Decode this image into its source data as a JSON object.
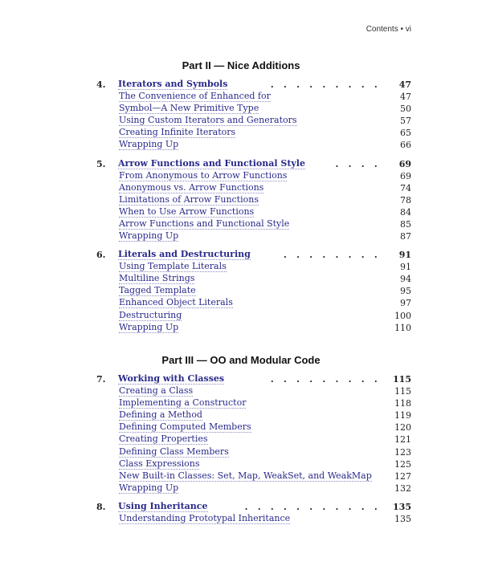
{
  "header": {
    "text": "Contents • vi"
  },
  "parts": [
    {
      "title": "Part II — Nice Additions",
      "chapters": [
        {
          "number": "4.",
          "title": "Iterators and Symbols",
          "page": "47",
          "sections": [
            {
              "title": "The Convenience of Enhanced for",
              "page": "47"
            },
            {
              "title": "Symbol—A New Primitive Type",
              "page": "50"
            },
            {
              "title": "Using Custom Iterators and Generators",
              "page": "57"
            },
            {
              "title": "Creating Infinite Iterators",
              "page": "65"
            },
            {
              "title": "Wrapping Up",
              "page": "66"
            }
          ]
        },
        {
          "number": "5.",
          "title": "Arrow Functions and Functional Style",
          "page": "69",
          "sections": [
            {
              "title": "From Anonymous to Arrow Functions",
              "page": "69"
            },
            {
              "title": "Anonymous vs. Arrow Functions",
              "page": "74"
            },
            {
              "title": "Limitations of Arrow Functions",
              "page": "78"
            },
            {
              "title": "When to Use Arrow Functions",
              "page": "84"
            },
            {
              "title": "Arrow Functions and Functional Style",
              "page": "85"
            },
            {
              "title": "Wrapping Up",
              "page": "87"
            }
          ]
        },
        {
          "number": "6.",
          "title": "Literals and Destructuring",
          "page": "91",
          "sections": [
            {
              "title": "Using Template Literals",
              "page": "91"
            },
            {
              "title": "Multiline Strings",
              "page": "94"
            },
            {
              "title": "Tagged Template",
              "page": "95"
            },
            {
              "title": "Enhanced Object Literals",
              "page": "97"
            },
            {
              "title": "Destructuring",
              "page": "100"
            },
            {
              "title": "Wrapping Up",
              "page": "110"
            }
          ]
        }
      ]
    },
    {
      "title": "Part III — OO and Modular Code",
      "chapters": [
        {
          "number": "7.",
          "title": "Working with Classes",
          "page": "115",
          "sections": [
            {
              "title": "Creating a Class",
              "page": "115"
            },
            {
              "title": "Implementing a Constructor",
              "page": "118"
            },
            {
              "title": "Defining a Method",
              "page": "119"
            },
            {
              "title": "Defining Computed Members",
              "page": "120"
            },
            {
              "title": "Creating Properties",
              "page": "121"
            },
            {
              "title": "Defining Class Members",
              "page": "123"
            },
            {
              "title": "Class Expressions",
              "page": "125"
            },
            {
              "title": "New Built-in Classes: Set, Map, WeakSet, and WeakMap",
              "page": "127"
            },
            {
              "title": "Wrapping Up",
              "page": "132"
            }
          ]
        },
        {
          "number": "8.",
          "title": "Using Inheritance",
          "page": "135",
          "sections": [
            {
              "title": "Understanding Prototypal Inheritance",
              "page": "135"
            }
          ]
        }
      ]
    }
  ]
}
